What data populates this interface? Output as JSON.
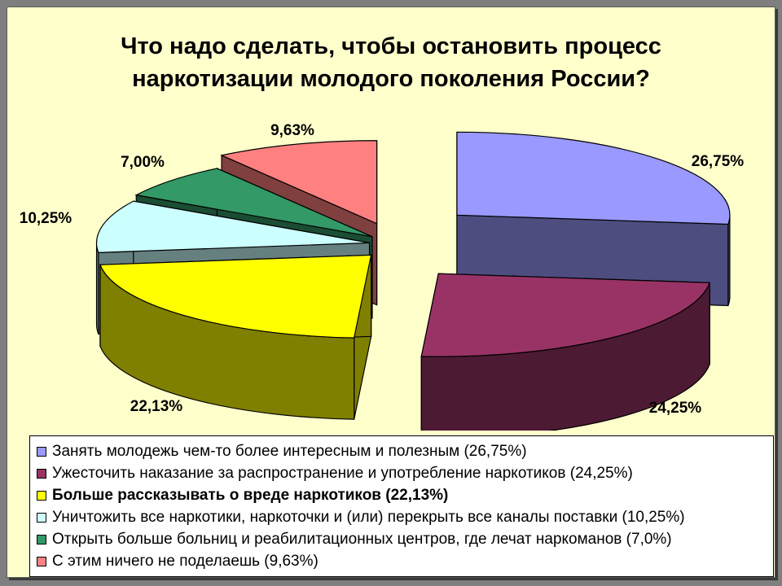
{
  "chart_data": {
    "type": "pie",
    "title": [
      "Что надо сделать, чтобы остановить процесс",
      "наркотизации молодого поколения России?"
    ],
    "slices": [
      {
        "label": "26,75%",
        "value": 26.75,
        "legend": "Занять молодежь чем-то более интересным и полезным (26,75%)",
        "color": "#9999ff",
        "side_color": "#4d4d80",
        "bold": false
      },
      {
        "label": "24,25%",
        "value": 24.25,
        "legend": "Ужесточить наказание за распространение и употребление наркотиков (24,25%)",
        "color": "#993366",
        "side_color": "#4d1a33",
        "bold": false
      },
      {
        "label": "22,13%",
        "value": 22.13,
        "legend": "Больше рассказывать о вреде наркотиков (22,13%)",
        "color": "#ffff00",
        "side_color": "#808000",
        "bold": true
      },
      {
        "label": "10,25%",
        "value": 10.25,
        "legend": "Уничтожить все наркотики, наркоточки и (или) перекрыть все каналы поставки (10,25%)",
        "color": "#ccffff",
        "side_color": "#668080",
        "bold": false
      },
      {
        "label": "7,00%",
        "value": 7.0,
        "legend": "Открыть больше больниц и реабилитационных центров, где лечат наркоманов (7,0%)",
        "color": "#339966",
        "side_color": "#1a4d33",
        "bold": false
      },
      {
        "label": "9,63%",
        "value": 9.63,
        "legend": "С этим ничего не поделаешь (9,63%)",
        "color": "#ff8080",
        "side_color": "#804040",
        "bold": false
      }
    ],
    "style": "3d-exploded",
    "legend_position": "bottom"
  }
}
